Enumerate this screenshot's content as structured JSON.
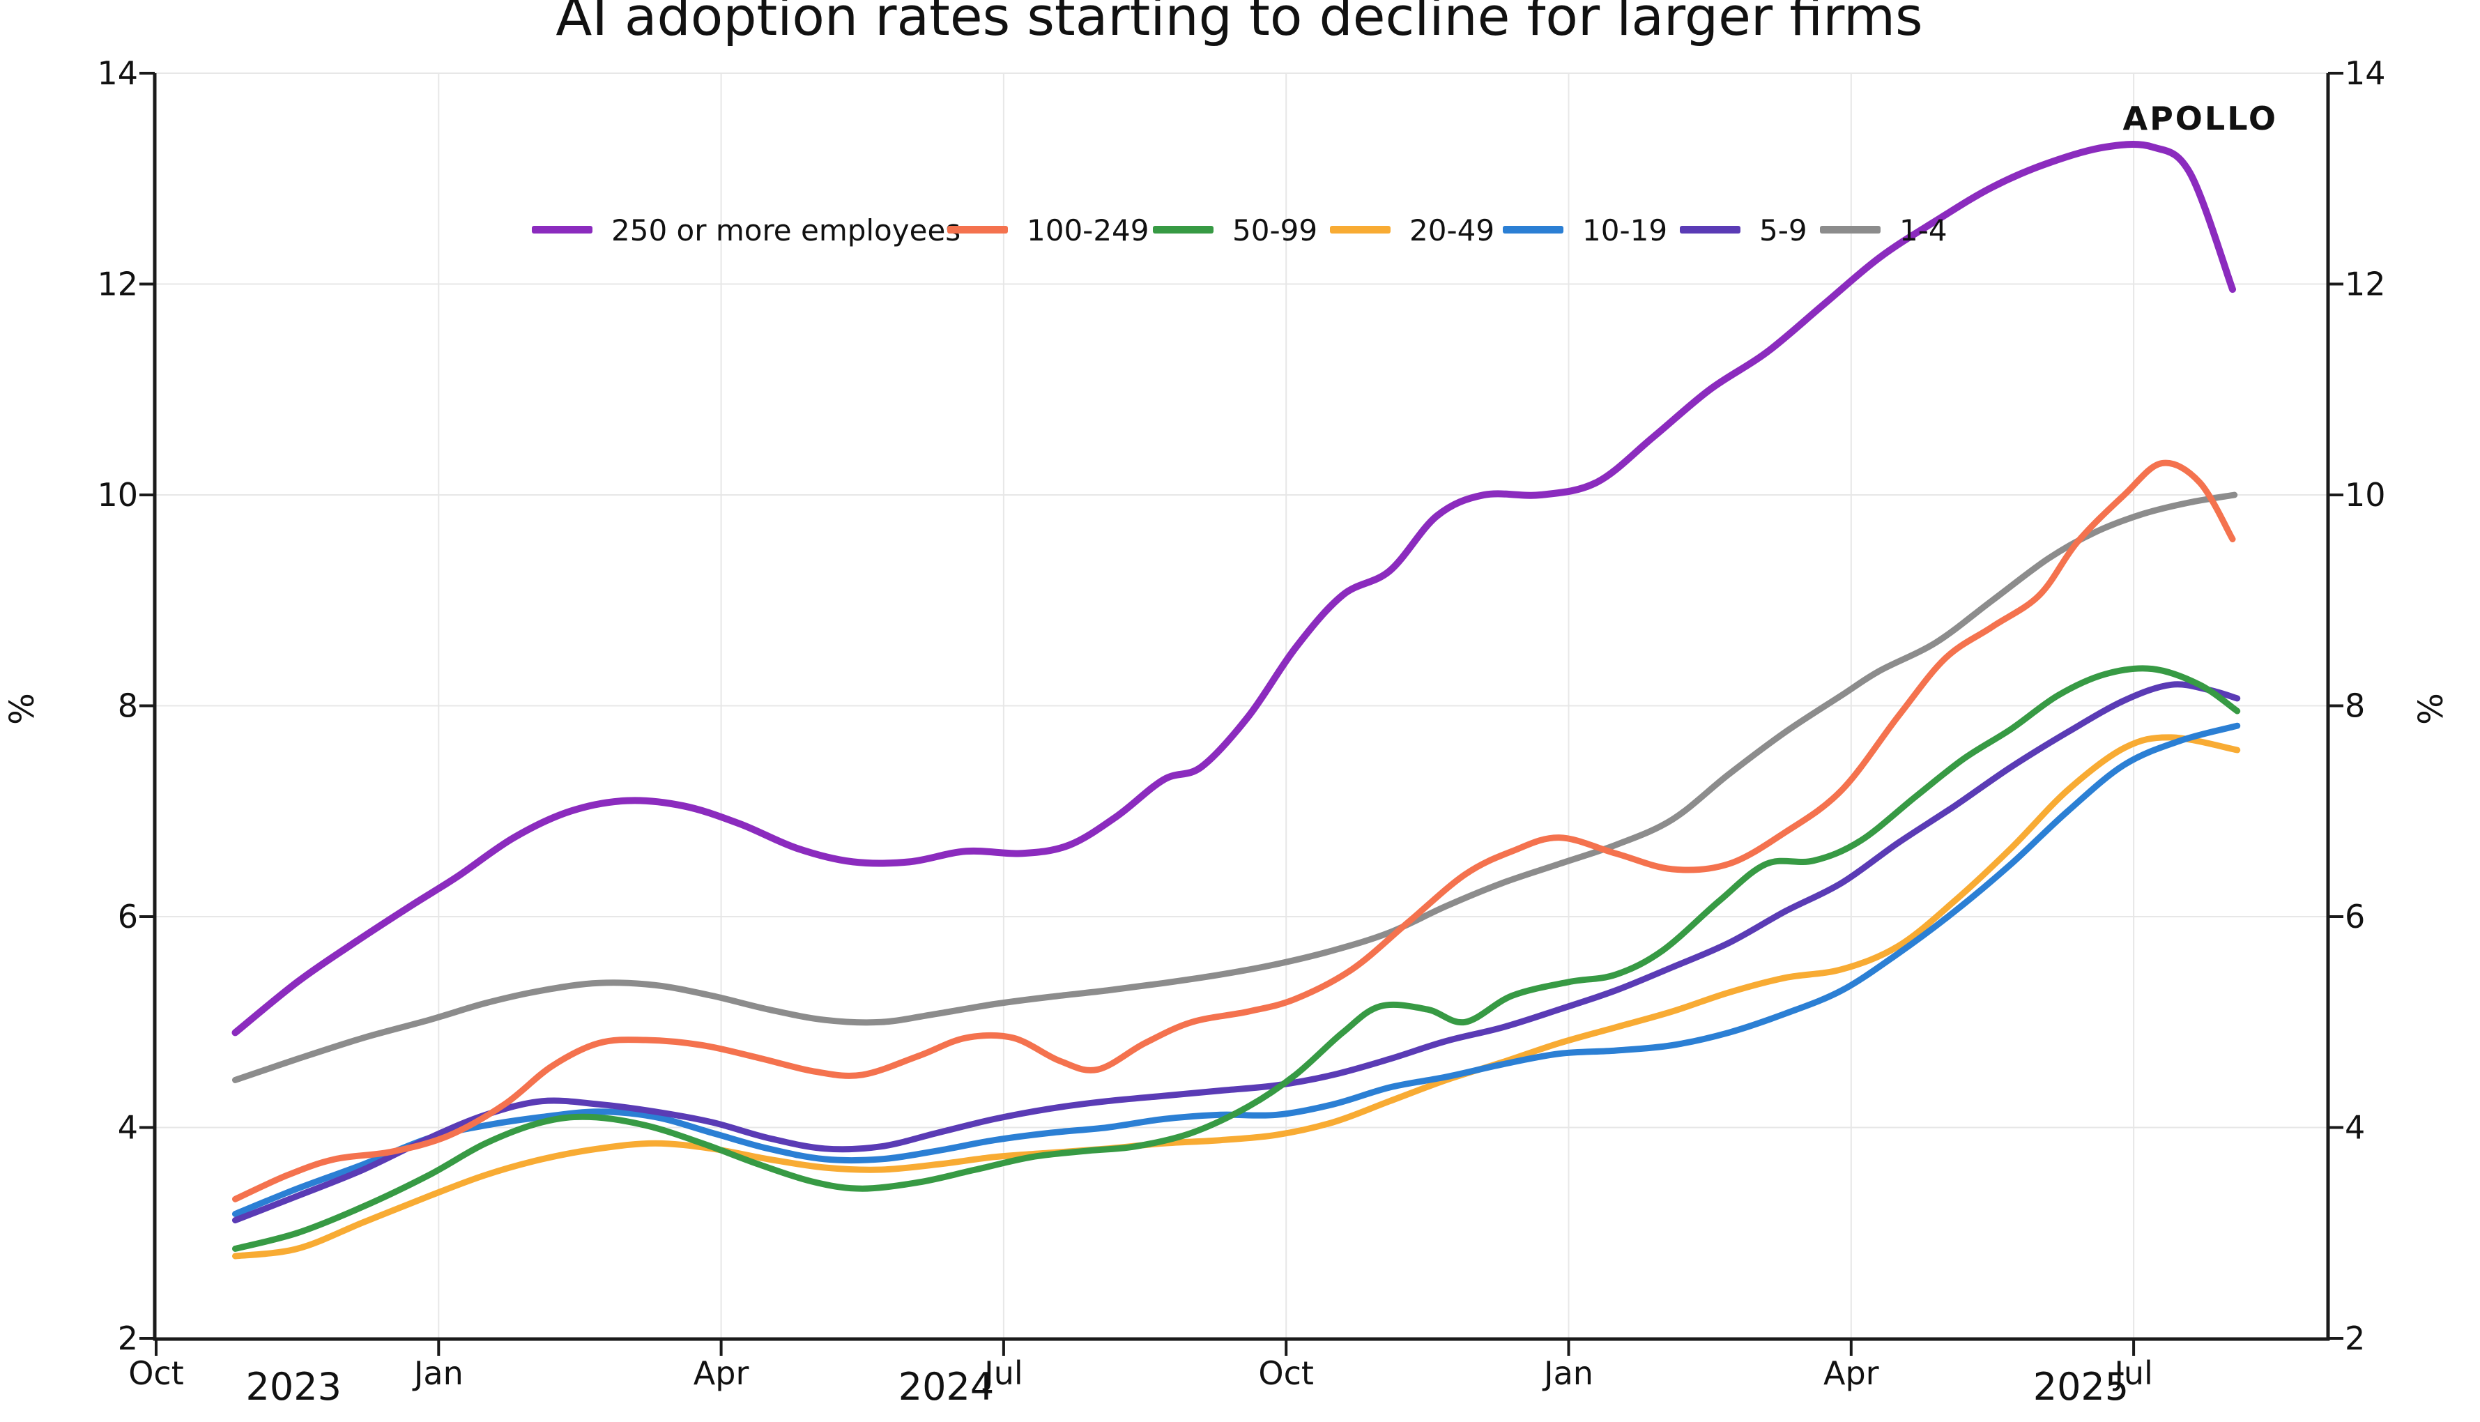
{
  "title": "AI adoption rates starting to decline for larger firms",
  "watermark": "APOLLO",
  "y_axis": {
    "label": "%",
    "min": 2,
    "max": 14,
    "ticks": [
      2,
      4,
      6,
      8,
      10,
      12,
      14
    ],
    "sides": "both"
  },
  "x_axis": {
    "unit": "months after the Oct 2023 tick",
    "axis_end_month": 23.06,
    "month_ticks": [
      {
        "label": "Oct",
        "m": 0
      },
      {
        "label": "Jan",
        "m": 3
      },
      {
        "label": "Apr",
        "m": 6
      },
      {
        "label": "Jul",
        "m": 9
      },
      {
        "label": "Oct",
        "m": 12
      },
      {
        "label": "Jan",
        "m": 15
      },
      {
        "label": "Apr",
        "m": 18
      },
      {
        "label": "Jul",
        "m": 21
      }
    ],
    "year_labels": [
      {
        "label": "2023",
        "m": 1.46
      },
      {
        "label": "2024",
        "m": 8.39
      },
      {
        "label": "2025",
        "m": 20.44
      }
    ]
  },
  "chart_data": {
    "type": "line",
    "title": "AI adoption rates starting to decline for larger firms",
    "xlabel": "",
    "ylabel": "%",
    "ylim": [
      2,
      14
    ],
    "grid": true,
    "legend_position": "top center",
    "x_unit": "months after Oct 1, 2023 (data ~mid-Nov 2023 through Aug 2025)",
    "draw_order": [
      "1-4",
      "20-49",
      "10-19",
      "5-9",
      "50-99",
      "100-249",
      "250 or more employees"
    ],
    "series": [
      {
        "name": "250 or more employees",
        "color": "#8B2BBE",
        "points": [
          [
            0.84,
            4.9
          ],
          [
            1.5,
            5.38
          ],
          [
            2.1,
            5.75
          ],
          [
            2.7,
            6.1
          ],
          [
            3.2,
            6.38
          ],
          [
            3.8,
            6.75
          ],
          [
            4.4,
            7.0
          ],
          [
            5.0,
            7.1
          ],
          [
            5.6,
            7.05
          ],
          [
            6.2,
            6.88
          ],
          [
            6.8,
            6.65
          ],
          [
            7.4,
            6.52
          ],
          [
            8.0,
            6.52
          ],
          [
            8.6,
            6.62
          ],
          [
            9.2,
            6.6
          ],
          [
            9.7,
            6.68
          ],
          [
            10.2,
            6.95
          ],
          [
            10.7,
            7.3
          ],
          [
            11.1,
            7.42
          ],
          [
            11.6,
            7.9
          ],
          [
            12.1,
            8.55
          ],
          [
            12.6,
            9.05
          ],
          [
            13.1,
            9.28
          ],
          [
            13.6,
            9.8
          ],
          [
            14.1,
            10.0
          ],
          [
            14.7,
            10.0
          ],
          [
            15.3,
            10.12
          ],
          [
            15.9,
            10.55
          ],
          [
            16.5,
            11.0
          ],
          [
            17.1,
            11.35
          ],
          [
            17.7,
            11.8
          ],
          [
            18.3,
            12.25
          ],
          [
            18.9,
            12.6
          ],
          [
            19.5,
            12.92
          ],
          [
            20.1,
            13.15
          ],
          [
            20.7,
            13.3
          ],
          [
            21.2,
            13.3
          ],
          [
            21.6,
            13.05
          ],
          [
            22.05,
            11.95
          ]
        ]
      },
      {
        "name": "100-249",
        "color": "#F4724E",
        "points": [
          [
            0.84,
            3.32
          ],
          [
            1.4,
            3.55
          ],
          [
            1.9,
            3.7
          ],
          [
            2.5,
            3.77
          ],
          [
            3.1,
            3.92
          ],
          [
            3.7,
            4.22
          ],
          [
            4.2,
            4.58
          ],
          [
            4.7,
            4.8
          ],
          [
            5.2,
            4.83
          ],
          [
            5.8,
            4.78
          ],
          [
            6.4,
            4.66
          ],
          [
            7.0,
            4.53
          ],
          [
            7.5,
            4.5
          ],
          [
            8.1,
            4.68
          ],
          [
            8.6,
            4.85
          ],
          [
            9.1,
            4.85
          ],
          [
            9.6,
            4.63
          ],
          [
            10.0,
            4.55
          ],
          [
            10.5,
            4.8
          ],
          [
            11.0,
            5.0
          ],
          [
            11.6,
            5.1
          ],
          [
            12.1,
            5.22
          ],
          [
            12.7,
            5.5
          ],
          [
            13.3,
            5.95
          ],
          [
            13.9,
            6.4
          ],
          [
            14.4,
            6.62
          ],
          [
            14.9,
            6.75
          ],
          [
            15.5,
            6.6
          ],
          [
            16.1,
            6.45
          ],
          [
            16.7,
            6.5
          ],
          [
            17.3,
            6.8
          ],
          [
            17.9,
            7.2
          ],
          [
            18.5,
            7.9
          ],
          [
            19.0,
            8.45
          ],
          [
            19.5,
            8.75
          ],
          [
            20.0,
            9.05
          ],
          [
            20.4,
            9.55
          ],
          [
            20.9,
            10.0
          ],
          [
            21.3,
            10.3
          ],
          [
            21.7,
            10.12
          ],
          [
            22.05,
            9.58
          ]
        ]
      },
      {
        "name": "50-99",
        "color": "#379A44",
        "points": [
          [
            0.84,
            2.85
          ],
          [
            1.5,
            3.0
          ],
          [
            2.2,
            3.25
          ],
          [
            2.9,
            3.55
          ],
          [
            3.5,
            3.85
          ],
          [
            4.1,
            4.05
          ],
          [
            4.6,
            4.1
          ],
          [
            5.2,
            4.02
          ],
          [
            5.8,
            3.85
          ],
          [
            6.4,
            3.65
          ],
          [
            7.0,
            3.48
          ],
          [
            7.5,
            3.42
          ],
          [
            8.1,
            3.48
          ],
          [
            8.7,
            3.6
          ],
          [
            9.3,
            3.72
          ],
          [
            9.9,
            3.78
          ],
          [
            10.4,
            3.82
          ],
          [
            11.0,
            3.95
          ],
          [
            11.6,
            4.2
          ],
          [
            12.1,
            4.5
          ],
          [
            12.6,
            4.9
          ],
          [
            13.0,
            5.15
          ],
          [
            13.5,
            5.12
          ],
          [
            13.9,
            5.0
          ],
          [
            14.4,
            5.25
          ],
          [
            15.0,
            5.38
          ],
          [
            15.5,
            5.45
          ],
          [
            16.0,
            5.68
          ],
          [
            16.6,
            6.15
          ],
          [
            17.1,
            6.5
          ],
          [
            17.6,
            6.53
          ],
          [
            18.1,
            6.72
          ],
          [
            18.7,
            7.15
          ],
          [
            19.2,
            7.5
          ],
          [
            19.7,
            7.78
          ],
          [
            20.2,
            8.1
          ],
          [
            20.7,
            8.3
          ],
          [
            21.2,
            8.35
          ],
          [
            21.7,
            8.2
          ],
          [
            22.1,
            7.95
          ]
        ]
      },
      {
        "name": "20-49",
        "color": "#F8AB33",
        "points": [
          [
            0.84,
            2.78
          ],
          [
            1.5,
            2.85
          ],
          [
            2.2,
            3.1
          ],
          [
            2.9,
            3.35
          ],
          [
            3.5,
            3.55
          ],
          [
            4.1,
            3.7
          ],
          [
            4.7,
            3.8
          ],
          [
            5.3,
            3.85
          ],
          [
            5.9,
            3.8
          ],
          [
            6.5,
            3.7
          ],
          [
            7.1,
            3.62
          ],
          [
            7.7,
            3.6
          ],
          [
            8.3,
            3.65
          ],
          [
            8.9,
            3.72
          ],
          [
            9.5,
            3.76
          ],
          [
            10.1,
            3.8
          ],
          [
            10.7,
            3.85
          ],
          [
            11.3,
            3.88
          ],
          [
            11.9,
            3.93
          ],
          [
            12.5,
            4.05
          ],
          [
            13.1,
            4.25
          ],
          [
            13.7,
            4.45
          ],
          [
            14.3,
            4.62
          ],
          [
            14.9,
            4.8
          ],
          [
            15.5,
            4.95
          ],
          [
            16.1,
            5.1
          ],
          [
            16.7,
            5.28
          ],
          [
            17.3,
            5.42
          ],
          [
            17.9,
            5.5
          ],
          [
            18.5,
            5.72
          ],
          [
            19.1,
            6.15
          ],
          [
            19.7,
            6.65
          ],
          [
            20.3,
            7.2
          ],
          [
            20.9,
            7.6
          ],
          [
            21.4,
            7.7
          ],
          [
            22.1,
            7.58
          ]
        ]
      },
      {
        "name": "10-19",
        "color": "#2B7FD4",
        "points": [
          [
            0.84,
            3.18
          ],
          [
            1.5,
            3.42
          ],
          [
            2.2,
            3.65
          ],
          [
            2.9,
            3.9
          ],
          [
            3.5,
            4.02
          ],
          [
            4.1,
            4.1
          ],
          [
            4.7,
            4.15
          ],
          [
            5.3,
            4.1
          ],
          [
            5.9,
            3.95
          ],
          [
            6.5,
            3.8
          ],
          [
            7.1,
            3.7
          ],
          [
            7.7,
            3.7
          ],
          [
            8.3,
            3.78
          ],
          [
            8.9,
            3.88
          ],
          [
            9.5,
            3.95
          ],
          [
            10.1,
            4.0
          ],
          [
            10.7,
            4.08
          ],
          [
            11.3,
            4.12
          ],
          [
            11.9,
            4.12
          ],
          [
            12.5,
            4.22
          ],
          [
            13.1,
            4.38
          ],
          [
            13.7,
            4.48
          ],
          [
            14.3,
            4.6
          ],
          [
            14.9,
            4.7
          ],
          [
            15.5,
            4.73
          ],
          [
            16.1,
            4.78
          ],
          [
            16.7,
            4.9
          ],
          [
            17.3,
            5.08
          ],
          [
            17.9,
            5.3
          ],
          [
            18.5,
            5.65
          ],
          [
            19.1,
            6.05
          ],
          [
            19.7,
            6.5
          ],
          [
            20.3,
            7.0
          ],
          [
            20.9,
            7.44
          ],
          [
            21.5,
            7.67
          ],
          [
            22.1,
            7.81
          ]
        ]
      },
      {
        "name": "5-9",
        "color": "#5A3BB5",
        "points": [
          [
            0.84,
            3.12
          ],
          [
            1.5,
            3.35
          ],
          [
            2.2,
            3.6
          ],
          [
            2.9,
            3.9
          ],
          [
            3.5,
            4.12
          ],
          [
            4.1,
            4.25
          ],
          [
            4.7,
            4.22
          ],
          [
            5.3,
            4.15
          ],
          [
            5.9,
            4.05
          ],
          [
            6.5,
            3.9
          ],
          [
            7.1,
            3.8
          ],
          [
            7.7,
            3.82
          ],
          [
            8.3,
            3.95
          ],
          [
            8.9,
            4.08
          ],
          [
            9.5,
            4.18
          ],
          [
            10.1,
            4.25
          ],
          [
            10.7,
            4.3
          ],
          [
            11.3,
            4.35
          ],
          [
            11.9,
            4.4
          ],
          [
            12.5,
            4.5
          ],
          [
            13.1,
            4.65
          ],
          [
            13.7,
            4.82
          ],
          [
            14.3,
            4.95
          ],
          [
            14.9,
            5.12
          ],
          [
            15.5,
            5.3
          ],
          [
            16.1,
            5.52
          ],
          [
            16.7,
            5.75
          ],
          [
            17.3,
            6.05
          ],
          [
            17.9,
            6.32
          ],
          [
            18.5,
            6.7
          ],
          [
            19.1,
            7.05
          ],
          [
            19.7,
            7.42
          ],
          [
            20.3,
            7.75
          ],
          [
            20.9,
            8.05
          ],
          [
            21.4,
            8.2
          ],
          [
            21.8,
            8.15
          ],
          [
            22.1,
            8.07
          ]
        ]
      },
      {
        "name": "1-4",
        "color": "#8C8C8C",
        "points": [
          [
            0.84,
            4.45
          ],
          [
            1.5,
            4.65
          ],
          [
            2.2,
            4.85
          ],
          [
            2.9,
            5.02
          ],
          [
            3.5,
            5.18
          ],
          [
            4.1,
            5.3
          ],
          [
            4.7,
            5.37
          ],
          [
            5.3,
            5.35
          ],
          [
            5.9,
            5.25
          ],
          [
            6.5,
            5.12
          ],
          [
            7.1,
            5.02
          ],
          [
            7.7,
            5.0
          ],
          [
            8.3,
            5.08
          ],
          [
            8.9,
            5.17
          ],
          [
            9.5,
            5.24
          ],
          [
            10.1,
            5.3
          ],
          [
            10.7,
            5.37
          ],
          [
            11.3,
            5.45
          ],
          [
            11.9,
            5.55
          ],
          [
            12.5,
            5.68
          ],
          [
            13.1,
            5.85
          ],
          [
            13.7,
            6.1
          ],
          [
            14.3,
            6.32
          ],
          [
            14.9,
            6.5
          ],
          [
            15.5,
            6.68
          ],
          [
            16.1,
            6.92
          ],
          [
            16.7,
            7.35
          ],
          [
            17.3,
            7.75
          ],
          [
            17.9,
            8.1
          ],
          [
            18.3,
            8.33
          ],
          [
            18.9,
            8.6
          ],
          [
            19.5,
            9.0
          ],
          [
            20.1,
            9.4
          ],
          [
            20.6,
            9.65
          ],
          [
            21.1,
            9.82
          ],
          [
            21.6,
            9.93
          ],
          [
            22.07,
            10.0
          ]
        ]
      }
    ]
  }
}
